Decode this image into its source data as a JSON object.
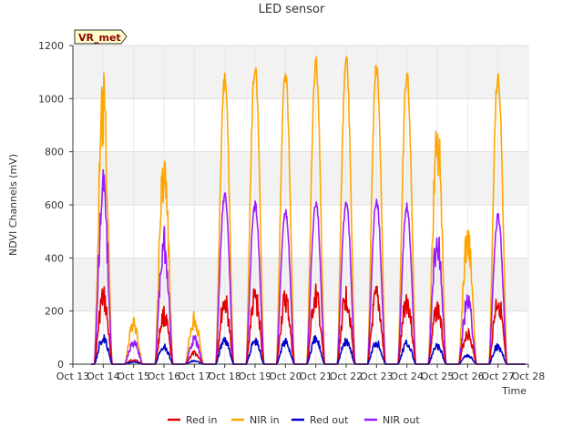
{
  "chart_data": {
    "type": "line",
    "title": "LED sensor",
    "xlabel": "Time",
    "ylabel": "NDVI Channels (mV)",
    "ylim": [
      0,
      1200
    ],
    "yticks": [
      0,
      200,
      400,
      600,
      800,
      1000,
      1200
    ],
    "xlim": [
      13,
      28
    ],
    "xticks": [
      13,
      14,
      15,
      16,
      17,
      18,
      19,
      20,
      21,
      22,
      23,
      24,
      25,
      26,
      27,
      28
    ],
    "xtick_labels": [
      "Oct 13",
      "Oct 14",
      "Oct 15",
      "Oct 16",
      "Oct 17",
      "Oct 18",
      "Oct 19",
      "Oct 20",
      "Oct 21",
      "Oct 22",
      "Oct 23",
      "Oct 24",
      "Oct 25",
      "Oct 26",
      "Oct 27",
      "Oct 28"
    ],
    "grid": true,
    "background_bands": true,
    "legend_position": "bottom",
    "site_badge": "VR_met",
    "day_centers": [
      14,
      15,
      16,
      17,
      18,
      19,
      20,
      21,
      22,
      23,
      24,
      25,
      26,
      27
    ],
    "series": [
      {
        "name": "Red in",
        "color": "#e00000",
        "daily_peaks": [
          300,
          20,
          220,
          50,
          280,
          300,
          290,
          305,
          305,
          300,
          290,
          250,
          140,
          290
        ]
      },
      {
        "name": "NIR in",
        "color": "#ffa500",
        "daily_peaks": [
          1105,
          180,
          845,
          205,
          1100,
          1160,
          1135,
          1165,
          1175,
          1150,
          1120,
          970,
          545,
          1125
        ]
      },
      {
        "name": "Red out",
        "color": "#0000cc",
        "daily_peaks": [
          115,
          10,
          80,
          15,
          110,
          105,
          100,
          110,
          105,
          100,
          95,
          80,
          40,
          80
        ]
      },
      {
        "name": "NIR out",
        "color": "#9a1aff",
        "daily_peaks": [
          745,
          100,
          525,
          110,
          655,
          615,
          590,
          630,
          630,
          630,
          610,
          535,
          275,
          570
        ]
      }
    ]
  }
}
